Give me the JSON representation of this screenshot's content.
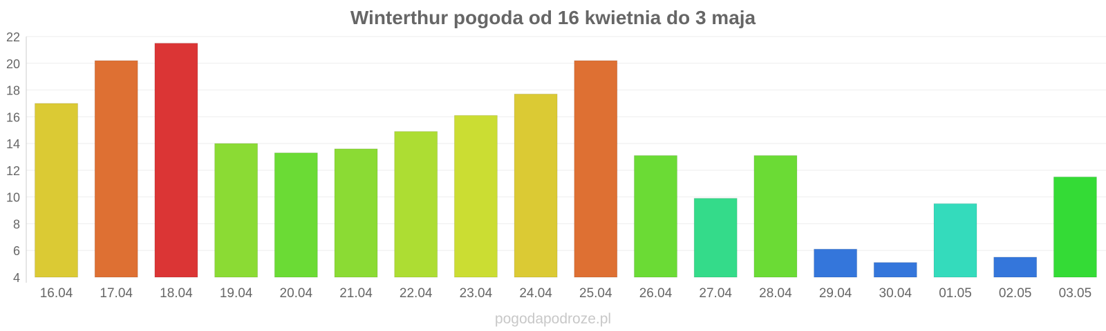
{
  "chart_data": {
    "type": "bar",
    "title": "Winterthur pogoda od 16 kwietnia do 3 maja",
    "categories": [
      "16.04",
      "17.04",
      "18.04",
      "19.04",
      "20.04",
      "21.04",
      "22.04",
      "23.04",
      "24.04",
      "25.04",
      "26.04",
      "27.04",
      "28.04",
      "29.04",
      "30.04",
      "01.05",
      "02.05",
      "03.05"
    ],
    "values": [
      17.0,
      20.2,
      21.5,
      14.0,
      13.3,
      13.6,
      14.9,
      16.1,
      17.7,
      20.2,
      13.1,
      9.9,
      13.1,
      6.1,
      5.1,
      9.5,
      5.5,
      11.5
    ],
    "colors": [
      "#dbca34",
      "#de7033",
      "#db3535",
      "#8bdb34",
      "#6bdb35",
      "#8bdb34",
      "#addd33",
      "#cbdd33",
      "#dbca34",
      "#de7033",
      "#6bdb35",
      "#34db8a",
      "#6bdb35",
      "#3476db",
      "#3476db",
      "#34dbbc",
      "#3476db",
      "#34db36"
    ],
    "ylim": [
      4,
      22
    ],
    "yticks": [
      4,
      6,
      8,
      10,
      12,
      14,
      16,
      18,
      20,
      22
    ],
    "grid": true,
    "xlabel": "",
    "ylabel": ""
  },
  "watermark": "pogodapodroze.pl"
}
